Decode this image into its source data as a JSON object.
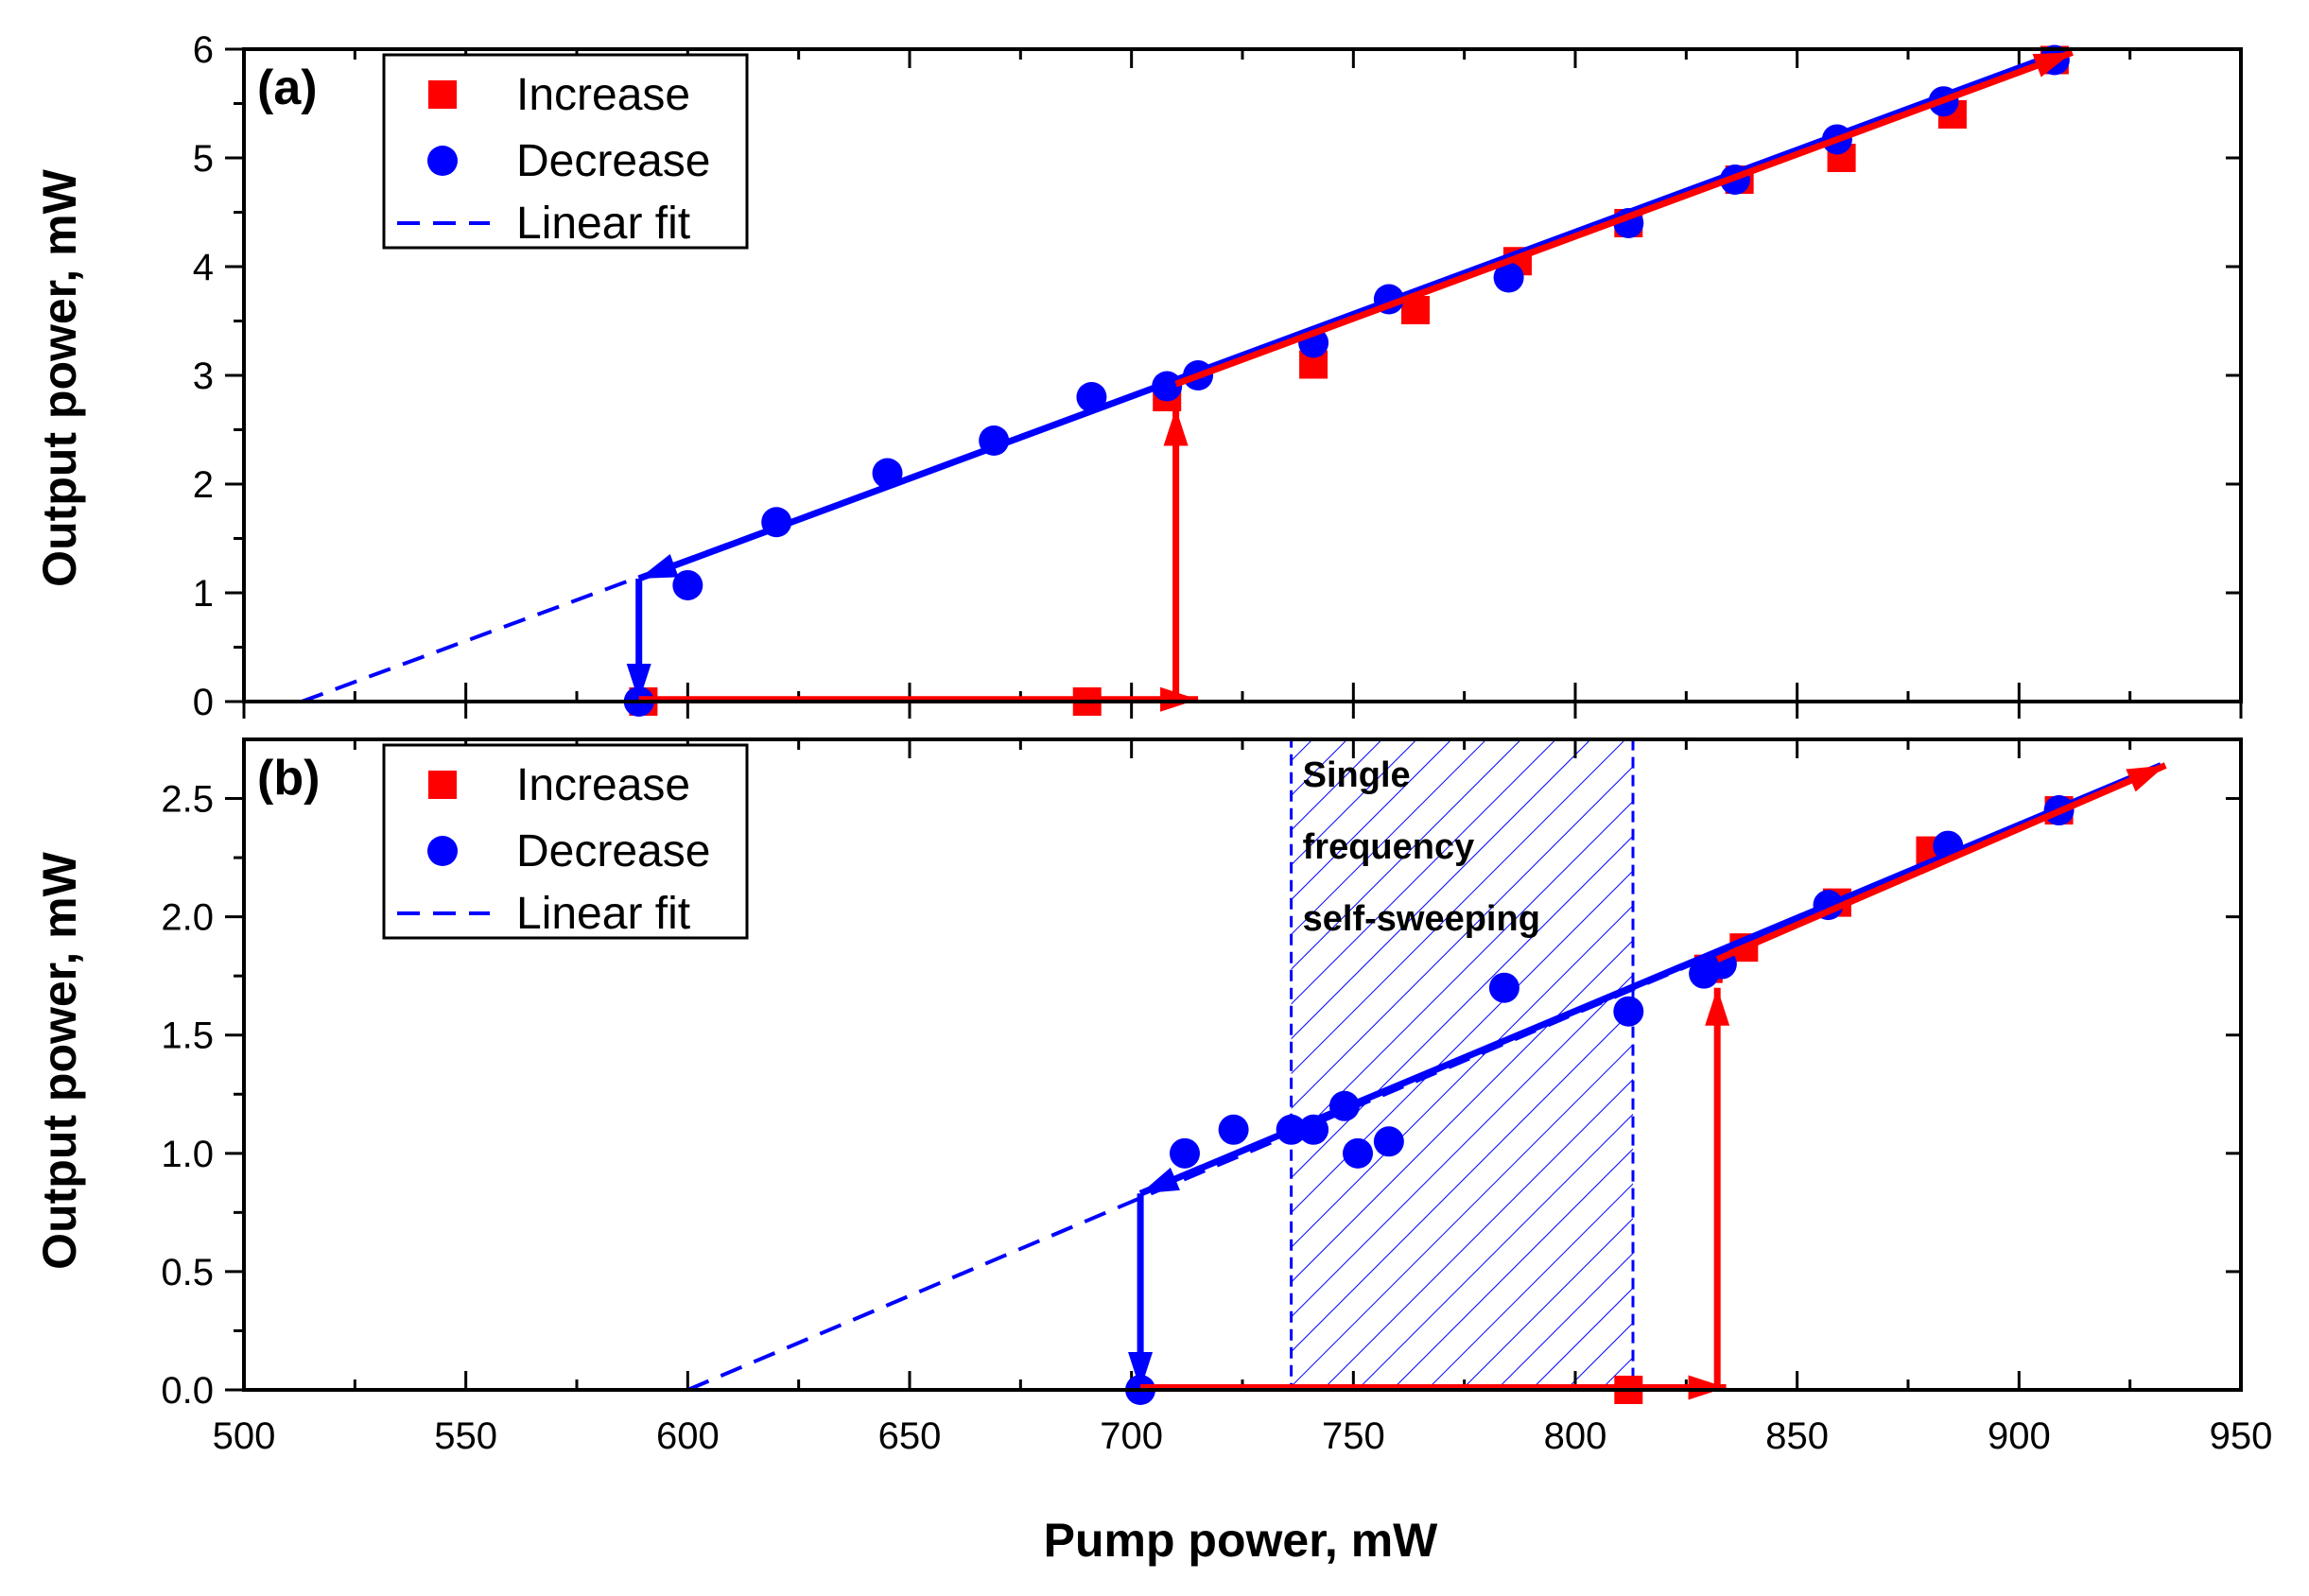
{
  "chart_data": [
    {
      "type": "scatter",
      "panel_label": "(a)",
      "xlabel": "Pump power, mW",
      "ylabel": "Output power, mW",
      "xlim": [
        500,
        950
      ],
      "ylim": [
        0,
        6
      ],
      "x_ticks": [
        "500",
        "550",
        "600",
        "650",
        "700",
        "750",
        "800",
        "850",
        "900",
        "950"
      ],
      "y_ticks": [
        "0",
        "1",
        "2",
        "3",
        "4",
        "5",
        "6"
      ],
      "y_tick_values": [
        0,
        1,
        2,
        3,
        4,
        5,
        6
      ],
      "grid": false,
      "legend_position": "top-left",
      "legend": [
        "Increase",
        "Decrease",
        "Linear fit"
      ],
      "series": [
        {
          "name": "Increase",
          "marker": "square",
          "color": "#ff0000",
          "points": [
            [
              590,
              0
            ],
            [
              690,
              0
            ],
            [
              708,
              2.8
            ],
            [
              741,
              3.1
            ],
            [
              764,
              3.6
            ],
            [
              787,
              4.05
            ],
            [
              812,
              4.4
            ],
            [
              837,
              4.8
            ],
            [
              860,
              5.0
            ],
            [
              885,
              5.4
            ],
            [
              908,
              5.9
            ]
          ]
        },
        {
          "name": "Decrease",
          "marker": "circle",
          "color": "#0000ff",
          "points": [
            [
              589,
              0
            ],
            [
              600,
              1.07
            ],
            [
              620,
              1.65
            ],
            [
              645,
              2.1
            ],
            [
              669,
              2.4
            ],
            [
              691,
              2.8
            ],
            [
              708,
              2.9
            ],
            [
              715,
              3.0
            ],
            [
              741,
              3.3
            ],
            [
              758,
              3.7
            ],
            [
              785,
              3.9
            ],
            [
              812,
              4.4
            ],
            [
              836,
              4.8
            ],
            [
              859,
              5.17
            ],
            [
              883,
              5.52
            ],
            [
              908,
              5.9
            ]
          ]
        }
      ],
      "fit_line": {
        "name": "Linear fit",
        "color": "#0000ff",
        "x": [
          513,
          908
        ],
        "y": [
          0,
          5.95
        ]
      },
      "arrows": [
        {
          "color": "#0000ff",
          "points": [
            [
              908,
              5.95
            ],
            [
              589,
              1.13
            ]
          ]
        },
        {
          "color": "#0000ff",
          "points": [
            [
              589,
              1.13
            ],
            [
              589,
              0
            ]
          ]
        },
        {
          "color": "#ff0000",
          "points": [
            [
              589,
              0.02
            ],
            [
              715,
              0.02
            ]
          ]
        },
        {
          "color": "#ff0000",
          "points": [
            [
              710,
              0.02
            ],
            [
              710,
              2.7
            ]
          ]
        },
        {
          "color": "#ff0000",
          "points": [
            [
              710,
              2.92
            ],
            [
              912,
              5.97
            ]
          ]
        }
      ]
    },
    {
      "type": "scatter",
      "panel_label": "(b)",
      "xlabel": "Pump power, mW",
      "ylabel": "Output power, mW",
      "xlim": [
        500,
        950
      ],
      "ylim": [
        0,
        2.75
      ],
      "x_ticks": [
        "500",
        "550",
        "600",
        "650",
        "700",
        "750",
        "800",
        "850",
        "900",
        "950"
      ],
      "y_ticks": [
        "0.0",
        "0.5",
        "1.0",
        "1.5",
        "2.0",
        "2.5"
      ],
      "y_tick_values": [
        0,
        0.5,
        1.0,
        1.5,
        2.0,
        2.5
      ],
      "grid": false,
      "legend_position": "top-left",
      "legend": [
        "Increase",
        "Decrease",
        "Linear fit"
      ],
      "series": [
        {
          "name": "Increase",
          "marker": "square",
          "color": "#ff0000",
          "points": [
            [
              812,
              0
            ],
            [
              830,
              1.78
            ],
            [
              838,
              1.87
            ],
            [
              859,
              2.06
            ],
            [
              880,
              2.28
            ],
            [
              909,
              2.45
            ]
          ]
        },
        {
          "name": "Decrease",
          "marker": "circle",
          "color": "#0000ff",
          "points": [
            [
              702,
              0
            ],
            [
              712,
              1.0
            ],
            [
              723,
              1.1
            ],
            [
              736,
              1.1
            ],
            [
              741,
              1.1
            ],
            [
              748,
              1.2
            ],
            [
              751,
              1.0
            ],
            [
              758,
              1.05
            ],
            [
              784,
              1.7
            ],
            [
              812,
              1.6
            ],
            [
              829,
              1.76
            ],
            [
              833,
              1.8
            ],
            [
              857,
              2.05
            ],
            [
              884,
              2.3
            ],
            [
              909,
              2.45
            ]
          ]
        }
      ],
      "fit_line": {
        "name": "Linear fit",
        "color": "#0000ff",
        "x": [
          600,
          932
        ],
        "y": [
          0,
          2.64
        ]
      },
      "shaded_region": {
        "x": [
          736,
          813
        ],
        "label_lines": [
          "Single",
          "frequency",
          "self-sweeping"
        ]
      },
      "arrows": [
        {
          "color": "#0000ff",
          "points": [
            [
              932,
              2.64
            ],
            [
              702,
              0.83
            ]
          ]
        },
        {
          "color": "#0000ff",
          "points": [
            [
              702,
              0.83
            ],
            [
              702,
              0
            ]
          ]
        },
        {
          "color": "#ff0000",
          "points": [
            [
              702,
              0.01
            ],
            [
              834,
              0.01
            ]
          ]
        },
        {
          "color": "#ff0000",
          "points": [
            [
              832,
              0.01
            ],
            [
              832,
              1.7
            ]
          ]
        },
        {
          "color": "#ff0000",
          "points": [
            [
              832,
              1.82
            ],
            [
              933,
              2.64
            ]
          ]
        }
      ]
    }
  ]
}
